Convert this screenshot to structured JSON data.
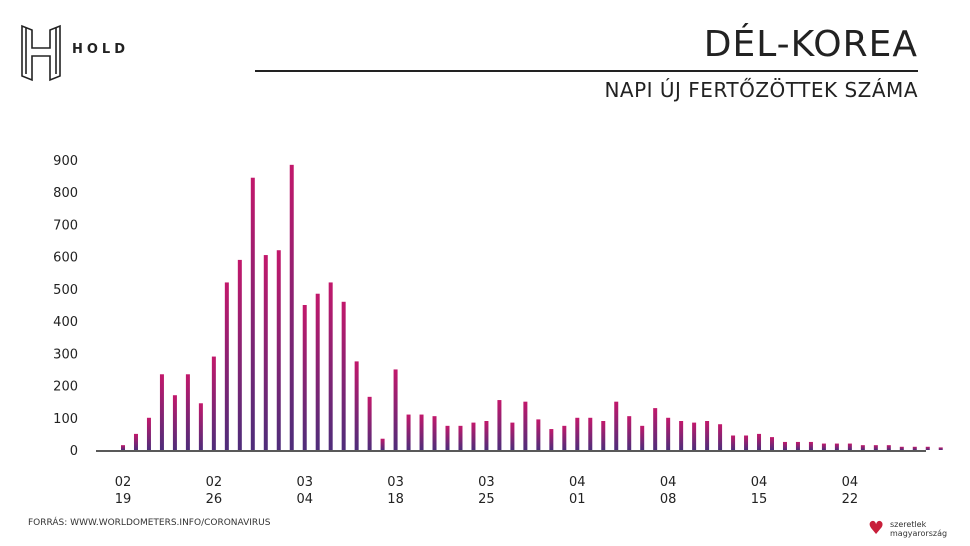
{
  "header": {
    "logo_text": "HOLD",
    "title": "DÉL-KOREA",
    "subtitle": "NAPI ÚJ FERTŐZÖTTEK SZÁMA"
  },
  "footer": {
    "source": "FORRÁS: WWW.WORLDOMETERS.INFO/CORONAVIRUS",
    "brand_line1": "szeretlek",
    "brand_line2": "magyarország"
  },
  "colors": {
    "bar_start": "#c2186b",
    "bar_end": "#4e2d7a",
    "axis": "#222222"
  },
  "chart_data": {
    "type": "bar",
    "title": "NAPI ÚJ FERTŐZÖTTEK SZÁMA",
    "xlabel": "",
    "ylabel": "",
    "ylim": [
      0,
      900
    ],
    "yticks": [
      0,
      100,
      200,
      300,
      400,
      500,
      600,
      700,
      800,
      900
    ],
    "grid": false,
    "x_tick_labels": [
      {
        "index": 0,
        "month": "02",
        "day": "19"
      },
      {
        "index": 7,
        "month": "02",
        "day": "26"
      },
      {
        "index": 14,
        "month": "03",
        "day": "04"
      },
      {
        "index": 21,
        "month": "03",
        "day": "18"
      },
      {
        "index": 28,
        "month": "03",
        "day": "25"
      },
      {
        "index": 35,
        "month": "04",
        "day": "01"
      },
      {
        "index": 42,
        "month": "04",
        "day": "08"
      },
      {
        "index": 49,
        "month": "04",
        "day": "15"
      },
      {
        "index": 56,
        "month": "04",
        "day": "22"
      }
    ],
    "values": [
      15,
      50,
      100,
      235,
      170,
      235,
      145,
      290,
      520,
      590,
      845,
      605,
      620,
      885,
      450,
      485,
      520,
      460,
      275,
      165,
      35,
      250,
      110,
      110,
      105,
      75,
      75,
      85,
      90,
      155,
      85,
      150,
      95,
      65,
      75,
      100,
      100,
      90,
      150,
      105,
      75,
      130,
      100,
      90,
      85,
      90,
      80,
      45,
      45,
      50,
      40,
      25,
      25,
      25,
      20,
      20,
      20,
      15,
      15,
      15,
      10,
      10,
      10,
      8
    ]
  }
}
